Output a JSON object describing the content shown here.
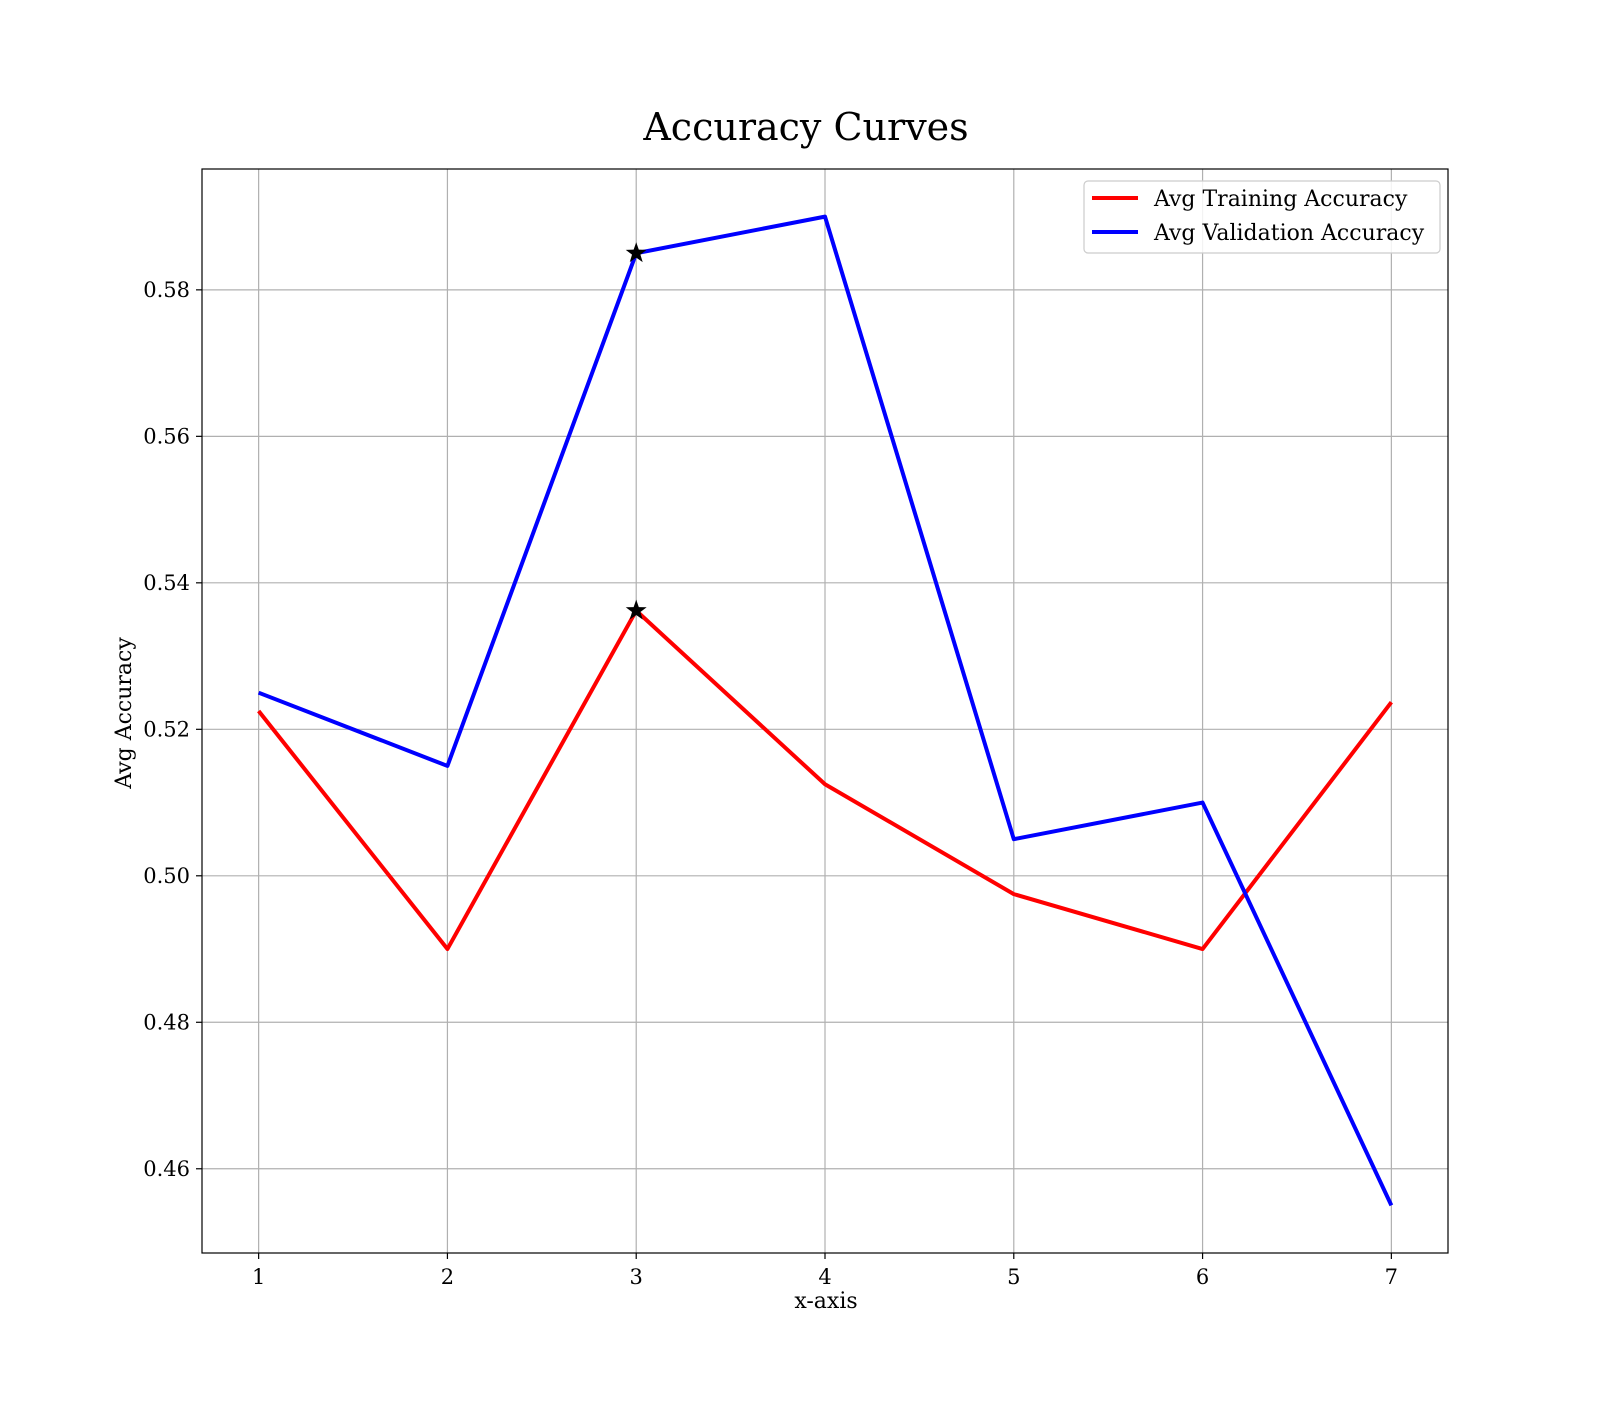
{
  "chart_data": {
    "type": "line",
    "title": "Accuracy Curves",
    "xlabel": "x-axis",
    "ylabel": "Avg Accuracy",
    "x": [
      1,
      2,
      3,
      4,
      5,
      6,
      7
    ],
    "xlim": [
      0.7,
      7.3
    ],
    "ylim": [
      0.4485,
      0.5965
    ],
    "x_ticks": [
      1,
      2,
      3,
      4,
      5,
      6,
      7
    ],
    "y_ticks": [
      0.46,
      0.48,
      0.5,
      0.52,
      0.54,
      0.56,
      0.58
    ],
    "x_tick_labels": [
      "1",
      "2",
      "3",
      "4",
      "5",
      "6",
      "7"
    ],
    "y_tick_labels": [
      "0.46",
      "0.48",
      "0.50",
      "0.52",
      "0.54",
      "0.56",
      "0.58"
    ],
    "grid": true,
    "legend_position": "top-right",
    "series": [
      {
        "name": "Avg Training Accuracy",
        "color": "#ff0000",
        "values": [
          0.5225,
          0.49,
          0.5362,
          0.5125,
          0.4975,
          0.49,
          0.5237
        ]
      },
      {
        "name": "Avg Validation Accuracy",
        "color": "#0000ff",
        "values": [
          0.525,
          0.515,
          0.585,
          0.59,
          0.505,
          0.51,
          0.455
        ]
      }
    ],
    "markers": [
      {
        "x": 3,
        "y": 0.585,
        "symbol": "star",
        "color": "#000000"
      },
      {
        "x": 3,
        "y": 0.5362,
        "symbol": "star",
        "color": "#000000"
      }
    ]
  }
}
